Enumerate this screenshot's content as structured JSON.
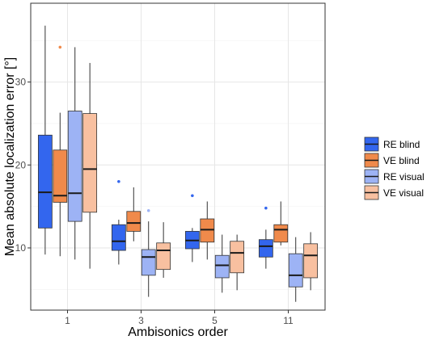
{
  "chart_data": {
    "type": "boxplot",
    "title": "",
    "xlabel": "Ambisonics order",
    "ylabel": "Mean absolute localization error [°]",
    "categories": [
      "1",
      "3",
      "5",
      "11"
    ],
    "yticks": [
      10,
      20,
      30
    ],
    "ylim": [
      2.5,
      39.5
    ],
    "grid": true,
    "legend_position": "right",
    "series": [
      {
        "name": "RE blind",
        "color": "#3366ee",
        "boxes": [
          {
            "whisker_low": 9.2,
            "q1": 12.4,
            "median": 16.7,
            "q3": 23.6,
            "whisker_high": 36.8,
            "outliers": []
          },
          {
            "whisker_low": 8.0,
            "q1": 9.7,
            "median": 10.8,
            "q3": 12.8,
            "whisker_high": 13.4,
            "outliers": [
              18.0
            ]
          },
          {
            "whisker_low": 8.3,
            "q1": 9.9,
            "median": 10.9,
            "q3": 12.0,
            "whisker_high": 12.4,
            "outliers": [
              16.3
            ]
          },
          {
            "whisker_low": 7.5,
            "q1": 8.9,
            "median": 10.2,
            "q3": 11.0,
            "whisker_high": 12.2,
            "outliers": [
              14.8
            ]
          }
        ]
      },
      {
        "name": "VE blind",
        "color": "#f08a4b",
        "boxes": [
          {
            "whisker_low": 9.0,
            "q1": 15.5,
            "median": 16.3,
            "q3": 21.8,
            "whisker_high": 26.3,
            "outliers": [
              34.2
            ]
          },
          {
            "whisker_low": 10.8,
            "q1": 12.0,
            "median": 13.0,
            "q3": 14.4,
            "whisker_high": 17.3,
            "outliers": []
          },
          {
            "whisker_low": 8.6,
            "q1": 10.7,
            "median": 12.2,
            "q3": 13.5,
            "whisker_high": 15.6,
            "outliers": []
          },
          {
            "whisker_low": 10.3,
            "q1": 10.7,
            "median": 12.2,
            "q3": 12.8,
            "whisker_high": 15.6,
            "outliers": []
          }
        ]
      },
      {
        "name": "RE visual",
        "color": "#9db3f5",
        "boxes": [
          {
            "whisker_low": 8.6,
            "q1": 13.2,
            "median": 16.6,
            "q3": 26.5,
            "whisker_high": 34.2,
            "outliers": []
          },
          {
            "whisker_low": 4.1,
            "q1": 6.7,
            "median": 8.9,
            "q3": 9.8,
            "whisker_high": 13.2,
            "outliers": [
              14.5
            ]
          },
          {
            "whisker_low": 4.6,
            "q1": 6.4,
            "median": 7.9,
            "q3": 9.1,
            "whisker_high": 11.6,
            "outliers": []
          },
          {
            "whisker_low": 3.5,
            "q1": 5.3,
            "median": 6.7,
            "q3": 9.3,
            "whisker_high": 11.3,
            "outliers": []
          }
        ]
      },
      {
        "name": "VE visual",
        "color": "#f8c0a0",
        "boxes": [
          {
            "whisker_low": 7.5,
            "q1": 14.3,
            "median": 19.5,
            "q3": 26.2,
            "whisker_high": 32.3,
            "outliers": []
          },
          {
            "whisker_low": 6.4,
            "q1": 7.4,
            "median": 9.7,
            "q3": 10.6,
            "whisker_high": 13.1,
            "outliers": []
          },
          {
            "whisker_low": 4.9,
            "q1": 7.0,
            "median": 9.4,
            "q3": 10.8,
            "whisker_high": 11.6,
            "outliers": []
          },
          {
            "whisker_low": 4.9,
            "q1": 6.4,
            "median": 9.1,
            "q3": 10.5,
            "whisker_high": 11.9,
            "outliers": []
          }
        ]
      }
    ]
  }
}
